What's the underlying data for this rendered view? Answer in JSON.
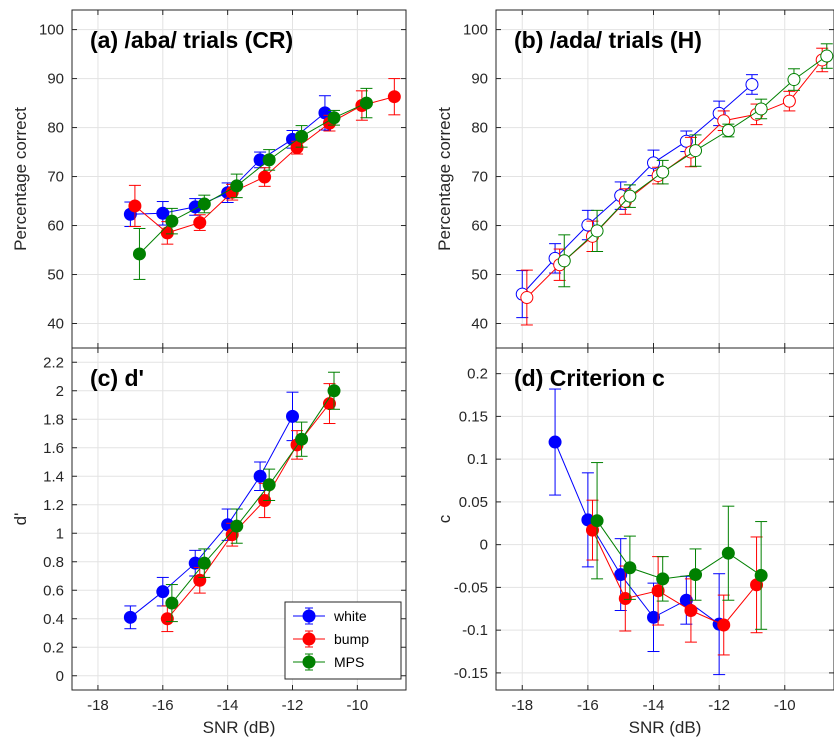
{
  "colors": {
    "white": "#0000ff",
    "bump": "#ff0000",
    "MPS": "#008000"
  },
  "legend": {
    "entries": [
      "white",
      "bump",
      "MPS"
    ],
    "placement": "bottom-right of panel (c)"
  },
  "chart_data": [
    {
      "id": "a",
      "type": "scatter",
      "title": "(a) /aba/ trials (CR)",
      "xlabel": "",
      "ylabel": "Percentage correct",
      "xlim": [
        -18.8,
        -8.5
      ],
      "ylim": [
        35,
        104
      ],
      "yticks": [
        40,
        50,
        60,
        70,
        80,
        90,
        100
      ],
      "ytick_labels": [
        "40",
        "50",
        "60",
        "70",
        "80",
        "90",
        "100"
      ],
      "xticks": [
        -18,
        -16,
        -14,
        -12,
        -10
      ],
      "grid": true,
      "filled": true,
      "series": [
        {
          "name": "white",
          "x": [
            -17,
            -16,
            -15,
            -14,
            -13,
            -12,
            -11
          ],
          "y": [
            62.3,
            62.5,
            63.8,
            66.7,
            73.4,
            77.6,
            83.0
          ],
          "err": [
            2.5,
            2.4,
            1.7,
            2.0,
            1.6,
            1.8,
            3.5
          ]
        },
        {
          "name": "bump",
          "x": [
            -16.86,
            -15.86,
            -14.86,
            -13.86,
            -12.86,
            -11.86,
            -10.86,
            -9.86,
            -8.86
          ],
          "y": [
            64.0,
            58.5,
            60.6,
            66.8,
            69.9,
            75.9,
            80.9,
            84.5,
            86.3
          ],
          "err": [
            4.2,
            2.3,
            1.6,
            1.6,
            1.9,
            1.3,
            1.6,
            3.0,
            3.7
          ]
        },
        {
          "name": "MPS",
          "x": [
            -16.72,
            -15.72,
            -14.72,
            -13.72,
            -12.72,
            -11.72,
            -10.72,
            -9.72
          ],
          "y": [
            54.2,
            60.9,
            64.4,
            68.1,
            73.4,
            78.2,
            82.0,
            85.0
          ],
          "err": [
            5.2,
            2.6,
            1.8,
            2.4,
            2.1,
            2.2,
            1.5,
            3.0
          ]
        }
      ]
    },
    {
      "id": "b",
      "type": "scatter",
      "title": "(b) /ada/ trials (H)",
      "xlabel": "",
      "ylabel": "Percentage correct",
      "xlim": [
        -18.8,
        -8.5
      ],
      "ylim": [
        35,
        104
      ],
      "yticks": [
        40,
        50,
        60,
        70,
        80,
        90,
        100
      ],
      "ytick_labels": [
        "40",
        "50",
        "60",
        "70",
        "80",
        "90",
        "100"
      ],
      "xticks": [
        -18,
        -16,
        -14,
        -12,
        -10
      ],
      "grid": true,
      "filled": false,
      "series": [
        {
          "name": "white",
          "x": [
            -18,
            -17,
            -16,
            -15,
            -14,
            -13,
            -12,
            -11
          ],
          "y": [
            46.0,
            53.3,
            60.1,
            66.1,
            72.8,
            77.2,
            82.9,
            88.8
          ],
          "err": [
            4.8,
            3.0,
            3.0,
            2.8,
            2.6,
            2.1,
            2.5,
            2.0
          ]
        },
        {
          "name": "bump",
          "x": [
            -17.86,
            -16.86,
            -15.86,
            -14.86,
            -13.86,
            -12.86,
            -11.86,
            -10.86,
            -9.86,
            -8.86
          ],
          "y": [
            45.3,
            52.0,
            57.8,
            64.9,
            70.2,
            75.0,
            81.4,
            82.7,
            85.4,
            93.8
          ],
          "err": [
            5.6,
            3.2,
            3.1,
            2.6,
            1.7,
            3.0,
            2.0,
            2.1,
            2.0,
            2.4
          ]
        },
        {
          "name": "MPS",
          "x": [
            -16.72,
            -15.72,
            -14.72,
            -13.72,
            -12.72,
            -11.72,
            -10.72,
            -9.72,
            -8.72
          ],
          "y": [
            52.8,
            58.9,
            66.0,
            70.9,
            75.3,
            79.4,
            83.8,
            89.8,
            94.6
          ],
          "err": [
            5.3,
            4.2,
            2.3,
            2.4,
            3.2,
            1.3,
            2.0,
            2.2,
            2.5
          ]
        }
      ]
    },
    {
      "id": "c",
      "type": "scatter",
      "title": "(c) d'",
      "xlabel": "SNR (dB)",
      "ylabel": "d'",
      "xlim": [
        -18.8,
        -8.5
      ],
      "ylim": [
        -0.1,
        2.3
      ],
      "yticks": [
        0,
        0.2,
        0.4,
        0.6,
        0.8,
        1,
        1.2,
        1.4,
        1.6,
        1.8,
        2,
        2.2
      ],
      "ytick_labels": [
        "0",
        "0.2",
        "0.4",
        "0.6",
        "0.8",
        "1",
        "1.2",
        "1.4",
        "1.6",
        "1.8",
        "2",
        "2.2"
      ],
      "xticks": [
        -18,
        -16,
        -14,
        -12,
        -10
      ],
      "xtick_labels": [
        "-18",
        "-16",
        "-14",
        "-12",
        "-10"
      ],
      "grid": true,
      "filled": true,
      "series": [
        {
          "name": "white",
          "x": [
            -17,
            -16,
            -15,
            -14,
            -13,
            -12
          ],
          "y": [
            0.41,
            0.59,
            0.79,
            1.06,
            1.4,
            1.82
          ],
          "err": [
            0.08,
            0.1,
            0.09,
            0.11,
            0.1,
            0.17
          ]
        },
        {
          "name": "bump",
          "x": [
            -15.86,
            -14.86,
            -13.86,
            -12.86,
            -11.86,
            -10.86
          ],
          "y": [
            0.4,
            0.67,
            0.99,
            1.23,
            1.62,
            1.91
          ],
          "err": [
            0.09,
            0.09,
            0.08,
            0.12,
            0.1,
            0.14
          ]
        },
        {
          "name": "MPS",
          "x": [
            -15.72,
            -14.72,
            -13.72,
            -12.72,
            -11.72,
            -10.72
          ],
          "y": [
            0.51,
            0.79,
            1.05,
            1.34,
            1.66,
            2.0
          ],
          "err": [
            0.13,
            0.1,
            0.12,
            0.11,
            0.12,
            0.13
          ]
        }
      ]
    },
    {
      "id": "d",
      "type": "scatter",
      "title": "(d) Criterion c",
      "xlabel": "SNR (dB)",
      "ylabel": "c",
      "xlim": [
        -18.8,
        -8.5
      ],
      "ylim": [
        -0.17,
        0.23
      ],
      "yticks": [
        -0.15,
        -0.1,
        -0.05,
        0,
        0.05,
        0.1,
        0.15,
        0.2
      ],
      "ytick_labels": [
        "-0.15",
        "-0.1",
        "-0.05",
        "0",
        "0.05",
        "0.1",
        "0.15",
        "0.2"
      ],
      "xticks": [
        -18,
        -16,
        -14,
        -12,
        -10
      ],
      "xtick_labels": [
        "-18",
        "-16",
        "-14",
        "-12",
        "-10"
      ],
      "grid": true,
      "filled": true,
      "series": [
        {
          "name": "white",
          "x": [
            -17,
            -16,
            -15,
            -14,
            -13,
            -12
          ],
          "y": [
            0.12,
            0.029,
            -0.035,
            -0.085,
            -0.065,
            -0.093
          ],
          "err": [
            0.062,
            0.055,
            0.042,
            0.04,
            0.028,
            0.059
          ]
        },
        {
          "name": "bump",
          "x": [
            -15.86,
            -14.86,
            -13.86,
            -12.86,
            -11.86,
            -10.86
          ],
          "y": [
            0.017,
            -0.063,
            -0.054,
            -0.077,
            -0.094,
            -0.047
          ],
          "err": [
            0.035,
            0.038,
            0.04,
            0.037,
            0.035,
            0.056
          ]
        },
        {
          "name": "MPS",
          "x": [
            -15.72,
            -14.72,
            -13.72,
            -12.72,
            -11.72,
            -10.72
          ],
          "y": [
            0.028,
            -0.027,
            -0.04,
            -0.035,
            -0.01,
            -0.036
          ],
          "err": [
            0.068,
            0.037,
            0.026,
            0.03,
            0.055,
            0.063
          ]
        }
      ]
    }
  ]
}
